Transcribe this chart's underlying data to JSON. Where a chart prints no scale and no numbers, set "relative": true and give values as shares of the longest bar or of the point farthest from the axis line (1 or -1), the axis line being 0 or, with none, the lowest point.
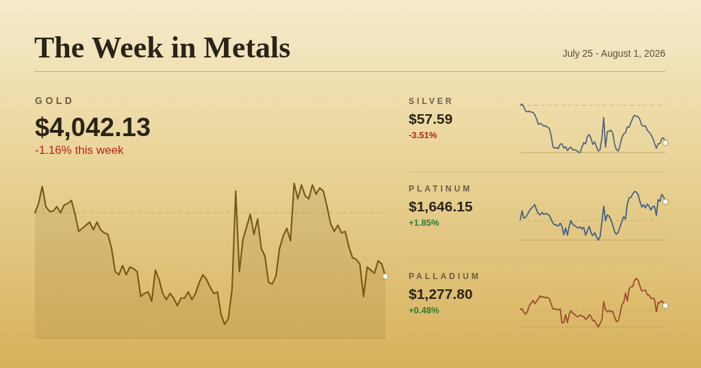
{
  "chart_data": [
    {
      "type": "other",
      "title": "The Week in Metals",
      "subtitle": "July 25 - August 1, 2026"
    },
    {
      "type": "other",
      "title": "GOLD",
      "subtitle": "$4,042.13",
      "annotations": [
        "-1.16% this week"
      ]
    },
    {
      "type": "area",
      "relative": true,
      "categories": [
        null,
        null,
        null,
        null,
        null,
        null,
        null,
        null,
        null,
        null,
        null,
        null,
        null,
        null,
        null,
        null,
        null,
        null,
        null,
        null,
        null,
        null,
        null,
        null,
        null,
        null,
        null,
        null,
        null,
        null,
        null,
        null,
        null,
        null,
        null,
        null,
        null,
        null,
        null,
        null,
        null,
        null,
        null,
        null,
        null,
        null,
        null,
        null,
        null,
        null,
        null,
        null,
        null,
        null,
        null,
        null,
        null,
        null,
        null,
        null,
        null,
        null,
        null,
        null,
        null,
        null,
        null,
        null,
        null,
        null,
        null,
        null,
        null,
        null,
        null,
        null,
        null,
        null,
        null,
        null,
        null,
        null,
        null,
        null,
        null,
        null,
        null,
        null,
        null,
        null,
        null,
        null,
        null,
        null,
        null,
        null,
        null
      ],
      "series": [
        {
          "type": "area",
          "color": "#7a5a14",
          "values": [
            0.81,
            0.87,
            0.98,
            0.85,
            0.82,
            0.82,
            0.85,
            0.81,
            0.86,
            0.87,
            0.89,
            0.8,
            0.69,
            0.71,
            0.73,
            0.75,
            0.7,
            0.75,
            0.7,
            0.68,
            0.67,
            0.58,
            0.43,
            0.41,
            0.47,
            0.41,
            0.46,
            0.45,
            0.43,
            0.27,
            0.29,
            0.3,
            0.24,
            0.44,
            0.38,
            0.29,
            0.25,
            0.29,
            0.26,
            0.21,
            0.26,
            0.26,
            0.3,
            0.25,
            0.29,
            0.36,
            0.41,
            0.38,
            0.33,
            0.29,
            0.3,
            0.15,
            0.09,
            0.13,
            0.32,
            0.95,
            0.43,
            0.64,
            0.72,
            0.8,
            0.67,
            0.77,
            0.58,
            0.53,
            0.36,
            0.35,
            0.4,
            0.58,
            0.66,
            0.71,
            0.63,
            1,
            0.9,
            0.99,
            0.92,
            0.9,
            0.99,
            0.93,
            0.97,
            0.95,
            0.85,
            0.74,
            0.69,
            0.73,
            0.68,
            0.69,
            0.59,
            0.52,
            0.51,
            0.48,
            0.27,
            0.46,
            0.44,
            0.42,
            0.5,
            0.48,
            0.4
          ]
        }
      ],
      "ref_lines": [
        {
          "axis": "y",
          "value": 0.81,
          "color": "#b0965a",
          "line_style": "dashed"
        }
      ]
    },
    {
      "type": "other",
      "title": "SILVER",
      "subtitle": "$57.59",
      "annotations": [
        "-3.51%"
      ]
    },
    {
      "type": "line",
      "relative": true,
      "categories": [
        null,
        null,
        null,
        null,
        null,
        null,
        null,
        null,
        null,
        null,
        null,
        null,
        null,
        null,
        null,
        null,
        null,
        null,
        null,
        null,
        null,
        null,
        null,
        null,
        null,
        null,
        null,
        null,
        null,
        null,
        null,
        null,
        null,
        null,
        null,
        null,
        null,
        null,
        null,
        null,
        null,
        null,
        null,
        null,
        null,
        null,
        null,
        null,
        null,
        null,
        null,
        null,
        null,
        null,
        null,
        null,
        null,
        null,
        null,
        null,
        null,
        null,
        null,
        null,
        null,
        null,
        null,
        null,
        null,
        null,
        null,
        null,
        null,
        null,
        null,
        null,
        null,
        null,
        null,
        null,
        null
      ],
      "series": [
        {
          "type": "line",
          "color": "#55657d",
          "values": [
            0.97,
            1,
            0.94,
            0.85,
            0.84,
            0.85,
            0.83,
            0.83,
            0.78,
            0.69,
            0.58,
            0.6,
            0.58,
            0.54,
            0.55,
            0.52,
            0.5,
            0.35,
            0.12,
            0.09,
            0.1,
            0.08,
            0.17,
            0.18,
            0.09,
            0.12,
            0.04,
            0.09,
            0.11,
            0.05,
            0.06,
            0.04,
            0.01,
            0,
            0.11,
            0.2,
            0.18,
            0.33,
            0.37,
            0.29,
            0.17,
            0.22,
            0.12,
            0.03,
            0.06,
            0.3,
            0.72,
            0.11,
            0.43,
            0.44,
            0.46,
            0.39,
            0.17,
            0.06,
            0.03,
            0.15,
            0.31,
            0.38,
            0.41,
            0.53,
            0.52,
            0.62,
            0.71,
            0.77,
            0.74,
            0.74,
            0.67,
            0.56,
            0.54,
            0.55,
            0.46,
            0.42,
            0.37,
            0.3,
            0.19,
            0.09,
            0.18,
            0.19,
            0.29,
            0.3,
            0.2
          ]
        }
      ],
      "ref_lines": [
        {
          "axis": "y",
          "value": 0.97,
          "color": "#b0965a",
          "line_style": "dashed"
        }
      ]
    },
    {
      "type": "other",
      "title": "PLATINUM",
      "subtitle": "$1,646.15",
      "annotations": [
        "+1.85%"
      ]
    },
    {
      "type": "line",
      "relative": true,
      "categories": [
        null,
        null,
        null,
        null,
        null,
        null,
        null,
        null,
        null,
        null,
        null,
        null,
        null,
        null,
        null,
        null,
        null,
        null,
        null,
        null,
        null,
        null,
        null,
        null,
        null,
        null,
        null,
        null,
        null,
        null,
        null,
        null,
        null,
        null,
        null,
        null,
        null,
        null,
        null,
        null,
        null,
        null,
        null,
        null,
        null,
        null,
        null,
        null,
        null,
        null,
        null,
        null,
        null,
        null,
        null,
        null,
        null,
        null,
        null,
        null,
        null,
        null,
        null,
        null,
        null,
        null,
        null,
        null,
        null,
        null,
        null,
        null,
        null,
        null,
        null,
        null,
        null,
        null,
        null,
        null,
        null
      ],
      "series": [
        {
          "type": "line",
          "color": "#3d6088",
          "values": [
            0.42,
            0.6,
            0.45,
            0.47,
            0.53,
            0.6,
            0.65,
            0.69,
            0.73,
            0.62,
            0.54,
            0.52,
            0.57,
            0.53,
            0.55,
            0.53,
            0.51,
            0.43,
            0.35,
            0.31,
            0.31,
            0.29,
            0.35,
            0.28,
            0.11,
            0.25,
            0.1,
            0.29,
            0.4,
            0.32,
            0.3,
            0.27,
            0.25,
            0.27,
            0.23,
            0.26,
            0.1,
            0.19,
            0.28,
            0.15,
            0.09,
            0.15,
            0.07,
            0,
            0.07,
            0.38,
            0.7,
            0.4,
            0.52,
            0.49,
            0.42,
            0.3,
            0.17,
            0.12,
            0.16,
            0.27,
            0.39,
            0.48,
            0.43,
            0.74,
            0.87,
            0.88,
            0.95,
            1,
            0.99,
            0.93,
            0.79,
            0.68,
            0.73,
            0.66,
            0.74,
            0.7,
            0.62,
            0.69,
            0.7,
            0.51,
            0.83,
            0.8,
            0.94,
            0.89,
            0.79
          ]
        }
      ],
      "ref_lines": [
        {
          "axis": "y",
          "value": 0.4,
          "color": "#b0965a",
          "line_style": "dashed"
        }
      ]
    },
    {
      "type": "other",
      "title": "PALLADIUM",
      "subtitle": "$1,277.80",
      "annotations": [
        "+0.48%"
      ]
    },
    {
      "type": "line",
      "relative": true,
      "categories": [
        null,
        null,
        null,
        null,
        null,
        null,
        null,
        null,
        null,
        null,
        null,
        null,
        null,
        null,
        null,
        null,
        null,
        null,
        null,
        null,
        null,
        null,
        null,
        null,
        null,
        null,
        null,
        null,
        null,
        null,
        null,
        null,
        null,
        null,
        null,
        null,
        null,
        null,
        null,
        null,
        null,
        null,
        null,
        null,
        null,
        null,
        null,
        null,
        null,
        null,
        null,
        null,
        null,
        null,
        null,
        null,
        null,
        null,
        null,
        null,
        null,
        null,
        null,
        null,
        null,
        null,
        null,
        null,
        null,
        null,
        null,
        null,
        null,
        null,
        null,
        null,
        null,
        null,
        null,
        null,
        null
      ],
      "series": [
        {
          "type": "line",
          "color": "#9b4a2c",
          "values": [
            0.37,
            0.37,
            0.3,
            0.26,
            0.33,
            0.44,
            0.49,
            0.55,
            0.48,
            0.53,
            0.58,
            0.64,
            0.61,
            0.62,
            0.6,
            0.61,
            0.58,
            0.48,
            0.37,
            0.37,
            0.37,
            0.35,
            0.37,
            0.08,
            0.09,
            0.25,
            0.09,
            0.27,
            0.33,
            0.28,
            0.26,
            0.22,
            0.21,
            0.25,
            0.22,
            0.21,
            0.16,
            0.18,
            0.25,
            0.22,
            0.13,
            0.13,
            0.06,
            0,
            0.07,
            0.15,
            0.52,
            0.36,
            0.31,
            0.34,
            0.31,
            0.32,
            0.2,
            0.11,
            0.13,
            0.26,
            0.46,
            0.5,
            0.7,
            0.53,
            0.78,
            0.83,
            0.83,
            0.96,
            1,
            0.96,
            0.84,
            0.74,
            0.75,
            0.76,
            0.66,
            0.66,
            0.59,
            0.59,
            0.57,
            0.31,
            0.5,
            0.5,
            0.54,
            0.49,
            0.44
          ]
        }
      ],
      "ref_lines": [
        {
          "axis": "y",
          "value": 0.34,
          "color": "#b0965a",
          "line_style": "dashed"
        }
      ]
    }
  ]
}
